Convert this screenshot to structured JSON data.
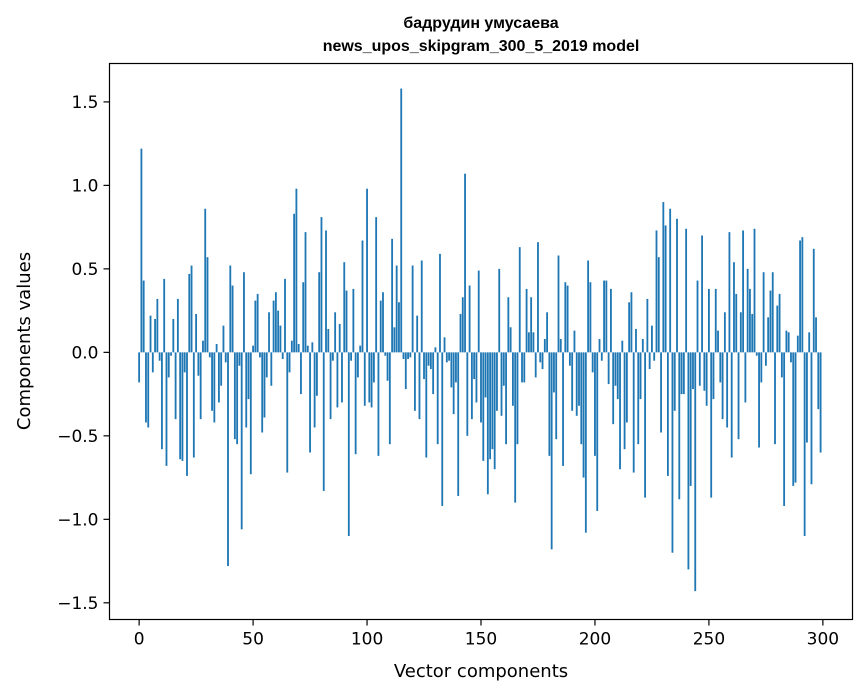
{
  "chart_data": {
    "type": "bar",
    "title": "бадрудин умусаева",
    "subtitle": "news_upos_skipgram_300_5_2019 model",
    "xlabel": "Vector components",
    "ylabel": "Components values",
    "xlim": [
      -13,
      313
    ],
    "ylim": [
      -1.6,
      1.73
    ],
    "xticks": [
      0,
      50,
      100,
      150,
      200,
      250,
      300
    ],
    "yticks": [
      -1.5,
      -1.0,
      -0.5,
      0.0,
      0.5,
      1.0,
      1.5
    ],
    "xtick_labels": [
      "0",
      "50",
      "100",
      "150",
      "200",
      "250",
      "300"
    ],
    "ytick_labels": [
      "−1.5",
      "−1.0",
      "−0.5",
      "0.0",
      "0.5",
      "1.0",
      "1.5"
    ],
    "bar_color": "#1f77b4",
    "grid": false,
    "values": [
      -0.18,
      1.22,
      0.43,
      -0.42,
      -0.45,
      0.22,
      -0.12,
      0.2,
      0.32,
      -0.05,
      -0.58,
      0.44,
      -0.68,
      -0.15,
      -0.02,
      0.2,
      -0.4,
      0.32,
      -0.64,
      -0.65,
      -0.12,
      -0.74,
      0.47,
      0.52,
      -0.63,
      0.23,
      -0.14,
      -0.4,
      0.07,
      0.86,
      0.57,
      -0.03,
      -0.35,
      -0.42,
      0.05,
      -0.3,
      -0.2,
      0.16,
      -0.06,
      -1.28,
      0.52,
      0.4,
      -0.52,
      -0.55,
      -0.08,
      -1.06,
      0.48,
      -0.45,
      -0.28,
      -0.73,
      0.04,
      0.31,
      0.35,
      -0.03,
      -0.48,
      -0.39,
      -0.15,
      0.24,
      -0.2,
      0.31,
      0.36,
      0.25,
      0.16,
      -0.04,
      0.44,
      -0.72,
      -0.12,
      0.07,
      0.83,
      0.98,
      0.05,
      -0.25,
      0.42,
      0.72,
      0.04,
      -0.6,
      0.06,
      -0.45,
      -0.26,
      0.48,
      0.81,
      -0.83,
      0.73,
      0.14,
      -0.4,
      -0.05,
      0.24,
      -0.33,
      0.17,
      -0.3,
      0.54,
      0.37,
      -1.1,
      -0.05,
      0.38,
      -0.61,
      -0.15,
      0.04,
      0.67,
      -0.32,
      0.98,
      -0.3,
      -0.33,
      -0.18,
      0.81,
      -0.62,
      0.31,
      0.36,
      -0.02,
      -0.17,
      -0.55,
      0.68,
      0.15,
      0.52,
      0.3,
      1.58,
      -0.04,
      -0.22,
      -0.04,
      -0.03,
      0.52,
      -0.35,
      0.22,
      -0.4,
      0.55,
      -0.16,
      -0.63,
      -0.08,
      -0.1,
      -0.25,
      0.03,
      -0.55,
      0.59,
      -0.92,
      0.09,
      -0.06,
      -0.05,
      -0.21,
      -0.37,
      -0.18,
      -0.86,
      0.23,
      0.33,
      1.07,
      -0.5,
      0.4,
      -0.4,
      -0.16,
      -0.3,
      0.49,
      -0.42,
      -0.65,
      -0.27,
      -0.85,
      -0.64,
      -0.58,
      -0.7,
      -0.35,
      0.5,
      -0.38,
      -0.2,
      -0.55,
      0.33,
      0.15,
      -0.32,
      -0.9,
      -0.55,
      0.63,
      -0.18,
      -0.18,
      0.38,
      0.12,
      0.33,
      0.12,
      -0.15,
      0.66,
      -0.06,
      -0.1,
      0.08,
      0.24,
      -0.62,
      -1.18,
      -0.24,
      -0.52,
      0.58,
      0.08,
      -0.68,
      0.42,
      0.4,
      -0.08,
      -0.35,
      0.13,
      -0.38,
      -0.32,
      -0.55,
      -0.75,
      -1.08,
      0.55,
      0.42,
      -0.12,
      -0.62,
      -0.95,
      0.08,
      -0.05,
      0.43,
      0.43,
      -0.19,
      0.38,
      -0.43,
      -0.2,
      -0.28,
      -0.7,
      0.07,
      -0.58,
      -0.42,
      0.3,
      0.36,
      -0.72,
      0.14,
      -0.55,
      -0.28,
      0.08,
      -0.87,
      0.32,
      -0.1,
      0.16,
      -0.05,
      0.73,
      0.57,
      -0.48,
      0.9,
      0.76,
      -0.74,
      0.86,
      -1.2,
      -0.35,
      0.8,
      -0.88,
      -0.25,
      -0.25,
      0.74,
      -1.3,
      -0.8,
      -0.22,
      -1.43,
      0.43,
      -0.2,
      0.7,
      -0.23,
      -0.32,
      0.38,
      -0.87,
      -0.28,
      0.38,
      0.13,
      -0.18,
      -0.4,
      0.24,
      -0.45,
      0.72,
      -0.63,
      0.54,
      0.35,
      -0.52,
      0.24,
      0.73,
      -0.3,
      0.5,
      0.38,
      0.23,
      0.74,
      -0.02,
      -0.57,
      -0.18,
      0.48,
      -0.08,
      0.21,
      0.37,
      0.48,
      -0.55,
      0.28,
      0.35,
      -0.15,
      -0.92,
      0.13,
      0.12,
      -0.06,
      -0.8,
      -0.78,
      0.1,
      0.67,
      0.69,
      -1.1,
      -0.54,
      0.12,
      -0.79,
      0.62,
      0.21,
      -0.34,
      -0.6
    ]
  }
}
